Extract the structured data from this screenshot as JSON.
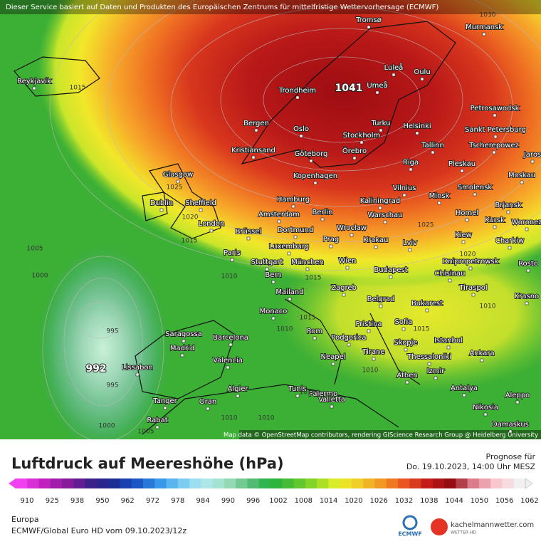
{
  "header": {
    "notice": "Dieser Service basiert auf Daten und Produkten des Europäischen Zentrums für mittelfristige Wettervorhersage (ECMWF)"
  },
  "map": {
    "cities": [
      "Tromsø",
      "Murmansk",
      "Reykjavik",
      "Luleå",
      "Oulu",
      "Umeå",
      "Trondheim",
      "Petrosawodsk",
      "Bergen",
      "Oslo",
      "Helsinki",
      "Turku",
      "Stockholm",
      "Sankt Petersburg",
      "Kristiansand",
      "Göteborg",
      "Örebro",
      "Tallinn",
      "Tscherepowez",
      "Jaros",
      "Glasgow",
      "Riga",
      "Pleskau",
      "Kopenhagen",
      "Moskau",
      "Hamburg",
      "Vilnius",
      "Smolensk",
      "Minsk",
      "Kaliningrad",
      "Dublin",
      "Sheffield",
      "Brjansk",
      "Berlin",
      "Amsterdam",
      "Warschau",
      "Homel",
      "Kursk",
      "Woronez",
      "London",
      "Wrocław",
      "Brüssel",
      "Dortmund",
      "Kiew",
      "Prag",
      "Krakau",
      "Lviv",
      "Charkiw",
      "Luxemburg",
      "Paris",
      "Dnipropetrowsk",
      "Stuttgart",
      "München",
      "Wien",
      "Budapest",
      "Chisinau",
      "Rosto",
      "Bern",
      "Mailand",
      "Zagreb",
      "Tiraspol",
      "Krasno",
      "Belgrad",
      "Bukarest",
      "Monaco",
      "Pristina",
      "Sofia",
      "Saragossa",
      "Barcelona",
      "Rom",
      "Podgorica",
      "Skopje",
      "Istanbul",
      "Madrid",
      "Tirane",
      "Thessaloniki",
      "Ankara",
      "Lissabon",
      "Valencia",
      "Neapel",
      "Izmir",
      "Athen",
      "Palermo",
      "Tunis",
      "Algier",
      "Antalya",
      "Aleppo",
      "Tanger",
      "Oran",
      "Valletta",
      "Nikosia",
      "Rabat",
      "Damaskus"
    ],
    "high": 1041,
    "low": 992,
    "isobar_labels": [
      1015,
      1030,
      1025,
      1020,
      1015,
      1005,
      1000,
      995,
      995,
      1000,
      1005,
      1010,
      1025,
      1020,
      1015,
      1010,
      1015,
      1010,
      1010,
      1010,
      1010,
      1015,
      1010
    ],
    "attribution": "Map data © OpenStreetMap contributors, rendering GIScience Research Group @ Heidelberg University"
  },
  "legend": {
    "title": "Luftdruck auf Meereshöhe (hPa)",
    "forecast_label": "Prognose für",
    "forecast_time": "Do. 19.10.2023, 14:00 Uhr MESZ",
    "ticks": [
      910,
      925,
      938,
      950,
      962,
      972,
      978,
      984,
      990,
      996,
      1002,
      1008,
      1014,
      1020,
      1026,
      1032,
      1038,
      1044,
      1050,
      1056,
      1062
    ]
  },
  "footer": {
    "region": "Europa",
    "model": "ECMWF/Global Euro HD vom  09.10.2023/12z",
    "ecmwf_logo": "ECMWF",
    "site": "kachelmannwetter.com",
    "site_sub": "WETTER HD"
  }
}
